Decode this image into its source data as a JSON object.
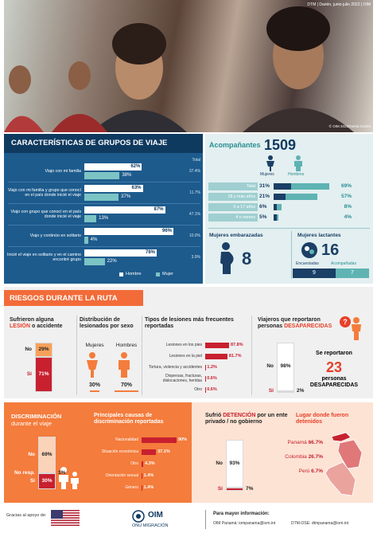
{
  "header": {
    "source": "DTM | Darién, junio-julio 2022 | OIM",
    "photo_credit": "© OIM 2022/Gema Cortés"
  },
  "groups": {
    "title": "CARACTERÍSTICAS DE GRUPOS DE VIAJE",
    "total_label": "Total",
    "categories": [
      "Viajo con mi familia",
      "Viajo con mi familia y grupo que conocí en el país donde inicié el viaje",
      "Viajo con grupo que conocí en el país donde inicié el viaje",
      "Viajo y continúo en solitario",
      "Inicié el viaje en solitario y en el camino encontré grupo"
    ],
    "series": [
      {
        "name": "Hombre",
        "color": "#ffffff",
        "values": [
          62,
          63,
          87,
          96,
          78
        ],
        "value_labels": [
          "62%",
          "63%",
          "87%",
          "96%",
          "78%"
        ]
      },
      {
        "name": "Mujer",
        "color": "#7cc4c4",
        "values": [
          38,
          37,
          13,
          4,
          22
        ],
        "value_labels": [
          "38%",
          "37%",
          "13%",
          "4%",
          "22%"
        ]
      }
    ],
    "totals": [
      "37.4%",
      "11.7%",
      "47.1%",
      "10.0%",
      "3.9%"
    ]
  },
  "companions": {
    "title": "Acompañantes",
    "count": 1509,
    "women_label": "Mujeres",
    "men_label": "Hombres",
    "women_color": "#1b3f66",
    "men_color": "#5fb3b3",
    "rows": [
      {
        "label": "Total",
        "women": 31,
        "women_label": "31%",
        "men": 69,
        "men_label": "69%"
      },
      {
        "label": "18 y más años",
        "women": 21,
        "women_label": "21%",
        "men": 57,
        "men_label": "57%"
      },
      {
        "label": "5 a 17 años",
        "women": 6,
        "women_label": "6%",
        "men": 8,
        "men_label": "8%"
      },
      {
        "label": "4 o menos",
        "women": 5,
        "women_label": "5%",
        "men": 4,
        "men_label": "4%"
      }
    ]
  },
  "pregnant": {
    "title": "Mujeres embarazadas",
    "count": 8
  },
  "lactating": {
    "title": "Mujeres lactantes",
    "count": 16,
    "surveyed_label": "Encuestadas",
    "surveyed": 9,
    "accompanied_label": "Acompañadas",
    "accompanied": 7
  },
  "risks": {
    "title": "RIESGOS DURANTE LA RUTA",
    "injury": {
      "title": [
        "Sufrieron alguna",
        "LESIÓN",
        "o accidente"
      ],
      "categories": [
        "No",
        "Sí"
      ],
      "values": [
        29,
        71
      ],
      "value_labels": [
        "29%",
        "71%"
      ],
      "colors": [
        "#f7a15a",
        "#c8202f"
      ]
    },
    "sex": {
      "title": "Distribución de lesionados por sexo",
      "categories": [
        "Mujeres",
        "Hombres"
      ],
      "values": [
        30,
        70
      ],
      "value_labels": [
        "30%",
        "70%"
      ],
      "color": "#f47c3c"
    },
    "injury_types": {
      "title": "Tipos de lesiones más frecuentes reportadas",
      "categories": [
        "Lesiones en los pies",
        "Lesiones en la piel",
        "Tortura, violencia y accidentes",
        "Dispersas, fracturas, dislocaciones, heridas",
        "Otro"
      ],
      "values": [
        87.8,
        81.7,
        1.2,
        0.6,
        0.6
      ],
      "value_labels": [
        "87.8%",
        "81.7%",
        "1.2%",
        "0.6%",
        "0.6%"
      ],
      "color": "#c8202f"
    },
    "missing": {
      "title": [
        "Viajeros que reportaron personas",
        "DESAPARECIDAS"
      ],
      "categories": [
        "No",
        "Sí"
      ],
      "values": [
        98,
        2
      ],
      "value_labels": [
        "98%",
        "2%"
      ],
      "colors": [
        "#ffffff",
        "#c8202f"
      ],
      "reported": "Se reportaron",
      "count": 23,
      "count_label": "personas DESAPARECIDAS"
    }
  },
  "discrimination": {
    "title": [
      "DISCRIMINACIÓN",
      "durante el viaje"
    ],
    "categories": [
      "No",
      "No resp.",
      "Sí"
    ],
    "values": [
      69,
      1,
      30
    ],
    "value_labels": [
      "69%",
      "1%",
      "30%"
    ],
    "colors": [
      "#fbd3b8",
      "#ffffff",
      "#c8202f"
    ]
  },
  "causes": {
    "title": "Principales causas de discriminación reportadas",
    "categories": [
      "Nacionalidad",
      "Situación económica",
      "Otro",
      "Orientación sexual",
      "Género"
    ],
    "values": [
      90,
      37.1,
      4.3,
      1.4,
      1.4
    ],
    "value_labels": [
      "90%",
      "37.1%",
      "4.3%",
      "1.4%",
      "1.4%"
    ],
    "color": "#c8202f"
  },
  "detention": {
    "title": [
      "Sufrió",
      "DETENCIÓN",
      "por un ente privado / no gobierno"
    ],
    "categories": [
      "No",
      "Sí"
    ],
    "values": [
      93,
      7
    ],
    "value_labels": [
      "93%",
      "7%"
    ],
    "colors": [
      "#ffffff",
      "#c8202f"
    ]
  },
  "detention_place": {
    "title": "Lugar donde fueron detenidos",
    "categories": [
      "Panamá",
      "Colombia",
      "Perú"
    ],
    "values": [
      66.7,
      26.7,
      6.7
    ],
    "value_labels": [
      "66.7%",
      "26.7%",
      "6.7%"
    ],
    "color": "#c8202f"
  },
  "footer": {
    "thanks": "Gracias al apoyo de:",
    "logo": "OIM",
    "logo_sub": "ONU MIGRACIÓN",
    "info_title": "Para mayor información:",
    "contacts": [
      "OIM Panamá: iompanama@iom.int",
      "DTM-OSE: dtmpanama@iom.int"
    ]
  }
}
